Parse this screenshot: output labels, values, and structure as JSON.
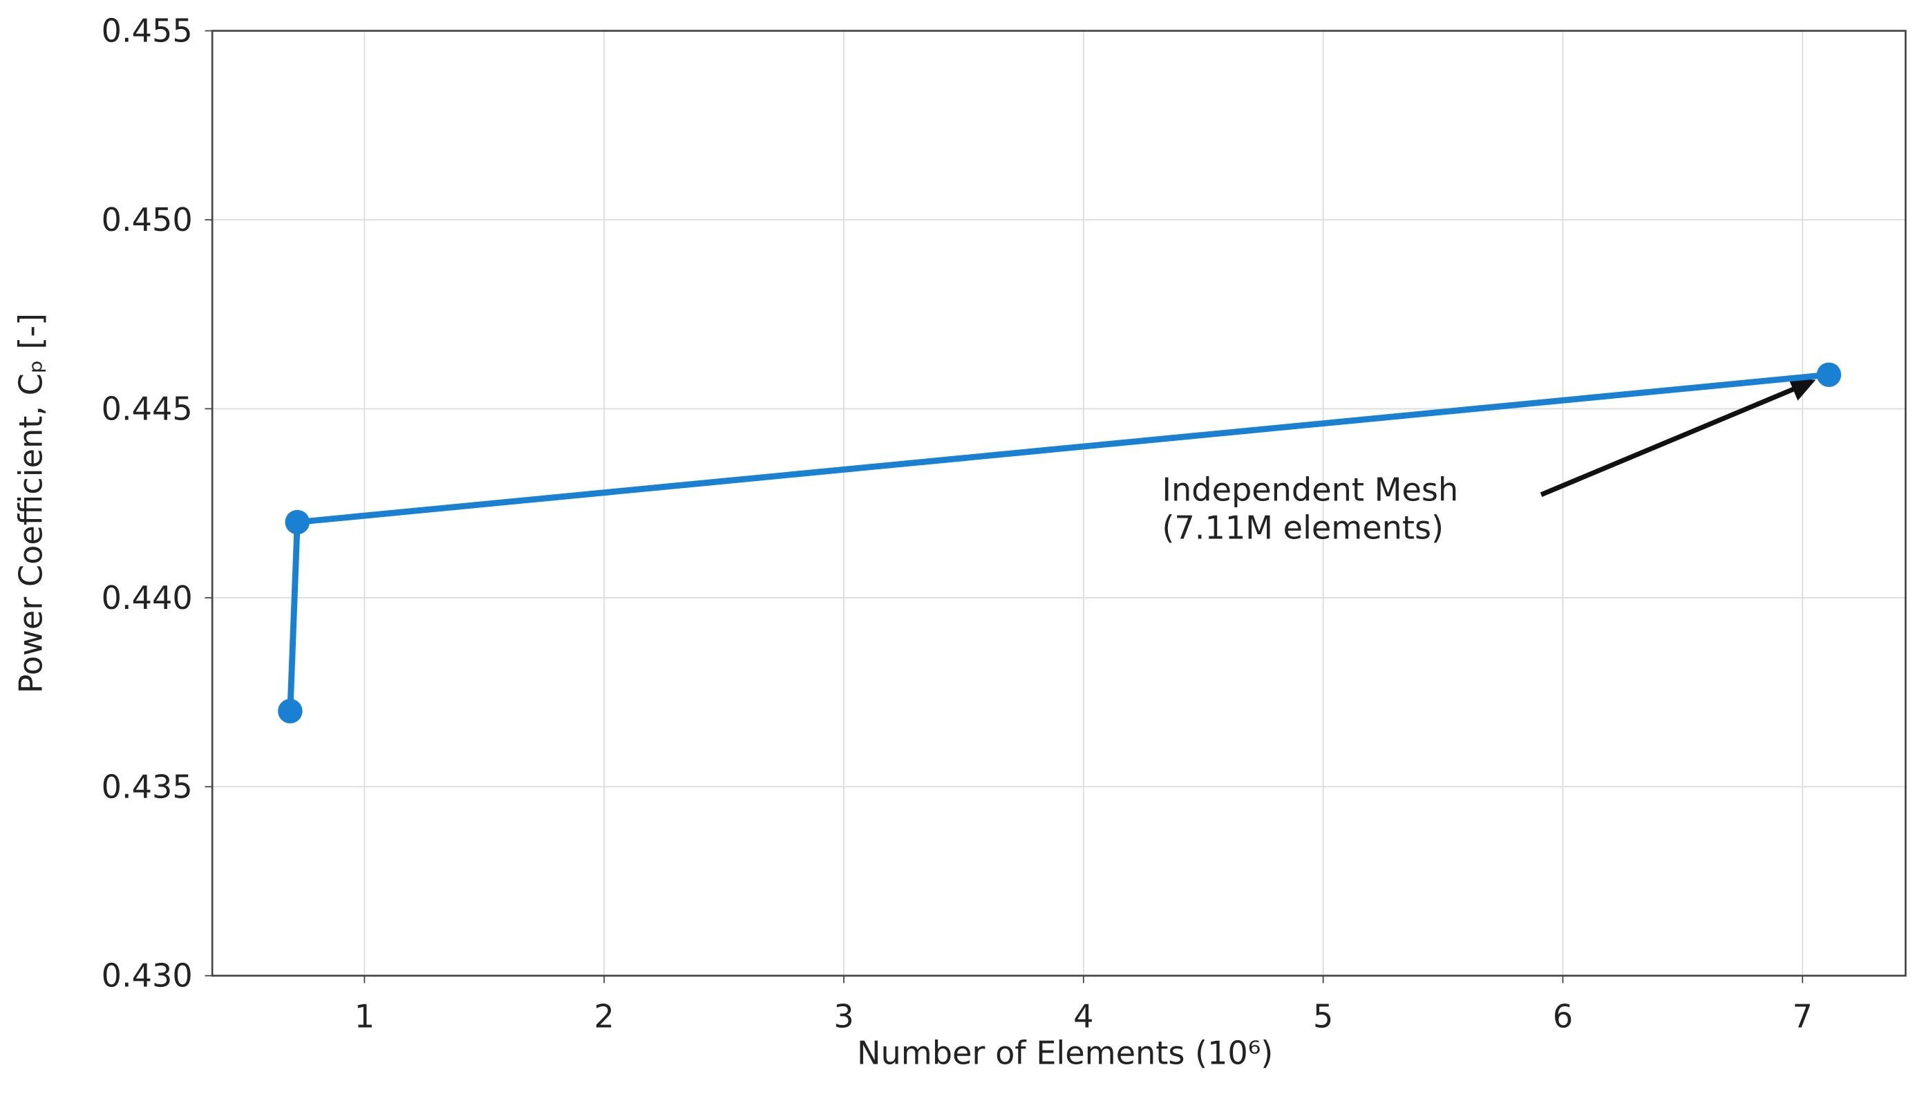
{
  "chart_data": {
    "type": "line",
    "xlabel": "Number of Elements (10⁶)",
    "ylabel": "Power Coefficient, Cₚ [-]",
    "x": [
      0.69,
      0.72,
      7.11
    ],
    "values": [
      0.437,
      0.442,
      0.4459
    ],
    "color": "#1a80d2",
    "xlim": [
      0.365,
      7.43
    ],
    "ylim": [
      0.43,
      0.455
    ],
    "xticks": [
      1,
      2,
      3,
      4,
      5,
      6,
      7
    ],
    "yticks": [
      {
        "value": 0.43,
        "label": "0.430"
      },
      0.435,
      {
        "value": 0.44,
        "label": "0.440"
      },
      0.445,
      {
        "value": 0.45,
        "label": "0.450"
      },
      0.455
    ],
    "grid": true,
    "annotation": [
      "Independent Mesh",
      "(7.11M elements)"
    ]
  }
}
